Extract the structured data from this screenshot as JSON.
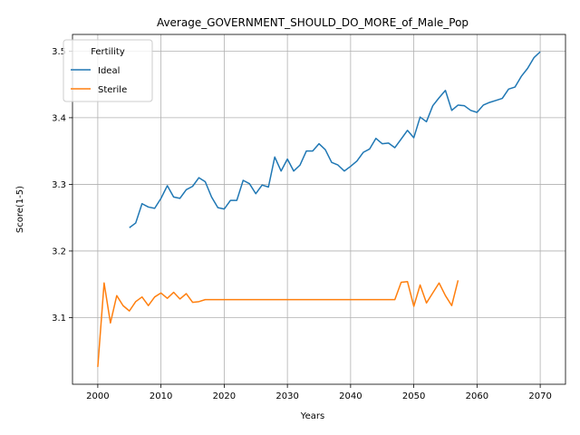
{
  "chart_data": {
    "type": "line",
    "title": "Average_GOVERNMENT_SHOULD_DO_MORE_of_Male_Pop",
    "xlabel": "Years",
    "ylabel": "Score(1-5)",
    "xlim": [
      1996,
      2074
    ],
    "ylim": [
      3.0,
      3.525
    ],
    "xticks": [
      2000,
      2010,
      2020,
      2030,
      2040,
      2050,
      2060,
      2070
    ],
    "yticks": [
      3.1,
      3.2,
      3.3,
      3.4,
      3.5
    ],
    "grid": true,
    "legend": {
      "title": "Fertility",
      "placement": "top-left"
    },
    "series": [
      {
        "name": "Ideal",
        "color": "#1f77b4",
        "x": [
          2005,
          2006,
          2007,
          2008,
          2009,
          2010,
          2011,
          2012,
          2013,
          2014,
          2015,
          2016,
          2017,
          2018,
          2019,
          2020,
          2021,
          2022,
          2023,
          2024,
          2025,
          2026,
          2027,
          2028,
          2029,
          2030,
          2031,
          2032,
          2033,
          2034,
          2035,
          2036,
          2037,
          2038,
          2039,
          2040,
          2041,
          2042,
          2043,
          2044,
          2045,
          2046,
          2047,
          2048,
          2049,
          2050,
          2051,
          2052,
          2053,
          2054,
          2055,
          2056,
          2057,
          2058,
          2059,
          2060,
          2061,
          2062,
          2063,
          2064,
          2065,
          2066,
          2067,
          2068,
          2069,
          2070
        ],
        "y": [
          3.235,
          3.242,
          3.271,
          3.266,
          3.264,
          3.279,
          3.298,
          3.281,
          3.279,
          3.292,
          3.297,
          3.31,
          3.304,
          3.281,
          3.265,
          3.263,
          3.276,
          3.276,
          3.306,
          3.301,
          3.286,
          3.299,
          3.296,
          3.341,
          3.32,
          3.338,
          3.32,
          3.329,
          3.35,
          3.35,
          3.361,
          3.352,
          3.333,
          3.329,
          3.32,
          3.327,
          3.335,
          3.348,
          3.353,
          3.369,
          3.361,
          3.362,
          3.355,
          3.368,
          3.381,
          3.37,
          3.401,
          3.394,
          3.418,
          3.43,
          3.441,
          3.411,
          3.419,
          3.418,
          3.411,
          3.408,
          3.419,
          3.423,
          3.426,
          3.429,
          3.443,
          3.446,
          3.462,
          3.474,
          3.49,
          3.499
        ]
      },
      {
        "name": "Sterile",
        "color": "#ff7f0e",
        "x": [
          2000,
          2001,
          2002,
          2003,
          2004,
          2005,
          2006,
          2007,
          2008,
          2009,
          2010,
          2011,
          2012,
          2013,
          2014,
          2015,
          2016,
          2017,
          2018,
          2019,
          2020,
          2021,
          2022,
          2023,
          2024,
          2025,
          2026,
          2027,
          2028,
          2029,
          2030,
          2031,
          2032,
          2033,
          2034,
          2035,
          2036,
          2037,
          2038,
          2039,
          2040,
          2041,
          2042,
          2043,
          2044,
          2045,
          2046,
          2047,
          2048,
          2049,
          2050,
          2051,
          2052,
          2053,
          2054,
          2055,
          2056,
          2057
        ],
        "y": [
          3.026,
          3.152,
          3.092,
          3.133,
          3.118,
          3.11,
          3.124,
          3.131,
          3.118,
          3.131,
          3.137,
          3.129,
          3.138,
          3.128,
          3.136,
          3.123,
          3.124,
          3.127,
          3.127,
          3.127,
          3.127,
          3.127,
          3.127,
          3.127,
          3.127,
          3.127,
          3.127,
          3.127,
          3.127,
          3.127,
          3.127,
          3.127,
          3.127,
          3.127,
          3.127,
          3.127,
          3.127,
          3.127,
          3.127,
          3.127,
          3.127,
          3.127,
          3.127,
          3.127,
          3.127,
          3.127,
          3.127,
          3.127,
          3.153,
          3.154,
          3.117,
          3.149,
          3.122,
          3.137,
          3.152,
          3.133,
          3.118,
          3.156
        ]
      }
    ]
  }
}
